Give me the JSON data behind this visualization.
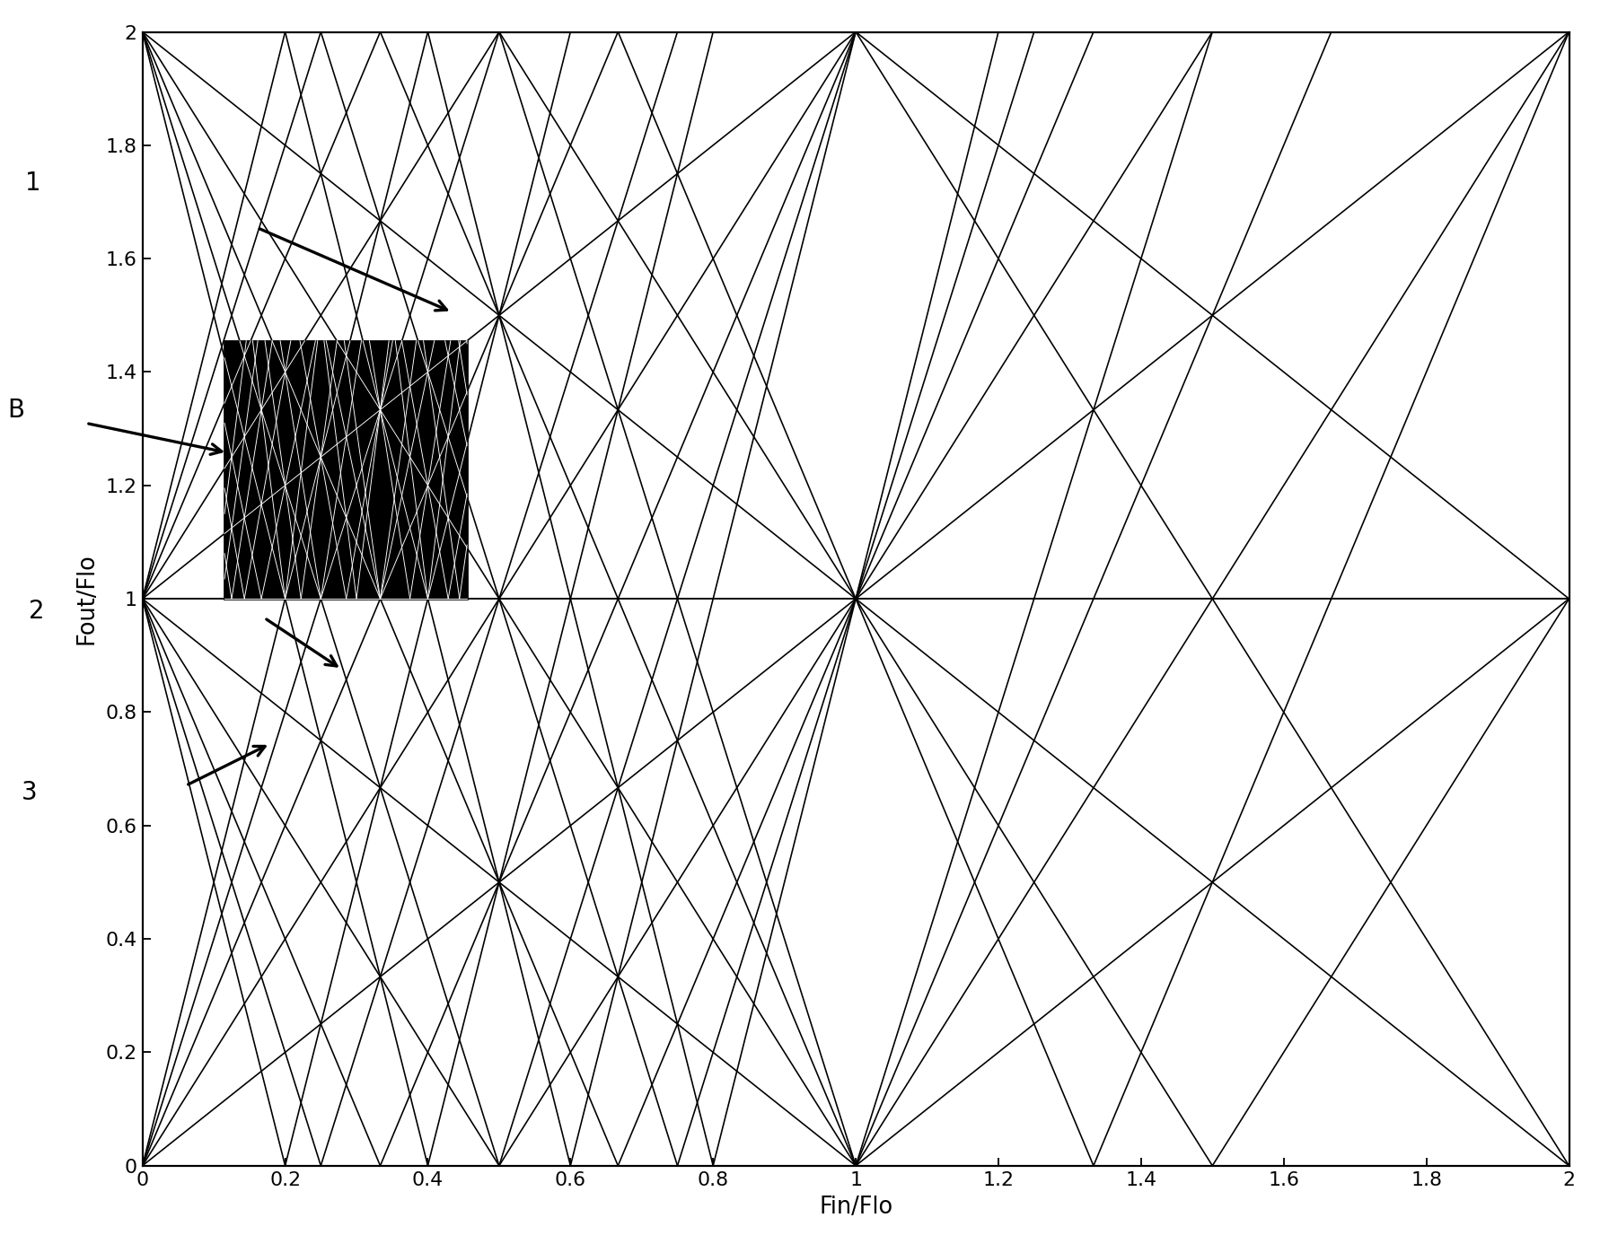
{
  "xlim": [
    0,
    2
  ],
  "ylim": [
    0,
    2
  ],
  "xlabel": "Fin/Flo",
  "ylabel": "Fout/Flo",
  "xticks": [
    0,
    0.2,
    0.4,
    0.6,
    0.8,
    1.0,
    1.2,
    1.4,
    1.6,
    1.8,
    2.0
  ],
  "yticks": [
    0,
    0.2,
    0.4,
    0.6,
    0.8,
    1.0,
    1.2,
    1.4,
    1.6,
    1.8,
    2.0
  ],
  "line_color": "#000000",
  "line_width": 0.9,
  "bg_color": "white",
  "inset_x0": 0.115,
  "inset_x1": 0.455,
  "inset_y0": 1.0,
  "inset_y1": 1.455,
  "slopes_min": -5,
  "slopes_max": 6,
  "intercepts_min": -4,
  "intercepts_max": 5,
  "label_fontsize": 15,
  "tick_fontsize": 12,
  "axis_label_fontsize": 14,
  "figwidth": 13.5,
  "figheight": 10.5,
  "dpi": 132
}
